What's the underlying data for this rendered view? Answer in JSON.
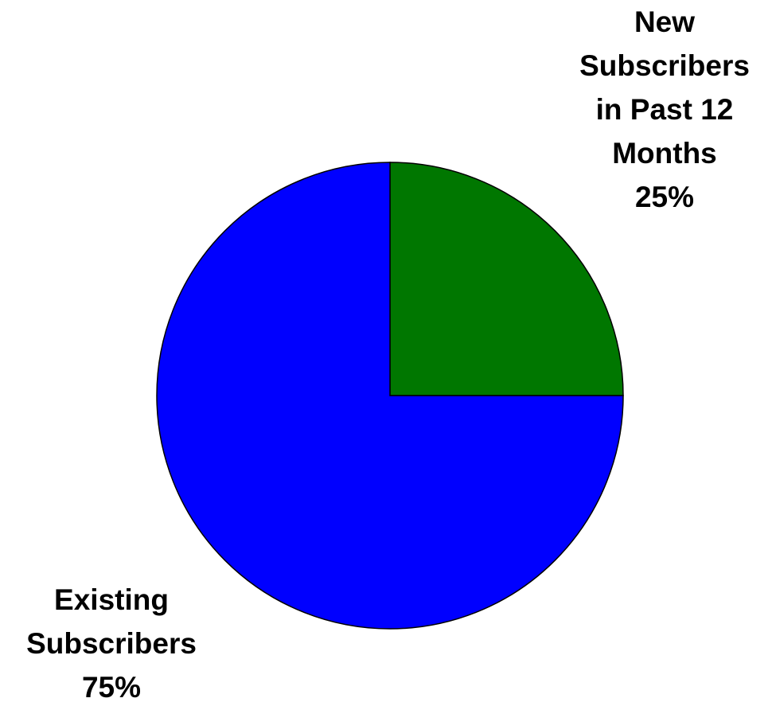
{
  "chart_data": {
    "type": "pie",
    "title": "",
    "start": "12 o'clock",
    "direction": "clockwise",
    "slices": [
      {
        "name": "New Subscribers in Past 12 Months",
        "value": 25,
        "value_label": "25%",
        "label_lines": [
          "New",
          "Subscribers",
          "in Past 12",
          "Months",
          "25%"
        ],
        "color": "#007700"
      },
      {
        "name": "Existing Subscribers",
        "value": 75,
        "value_label": "75%",
        "label_lines": [
          "Existing",
          "Subscribers",
          "75%"
        ],
        "color": "#0000FF"
      }
    ]
  }
}
